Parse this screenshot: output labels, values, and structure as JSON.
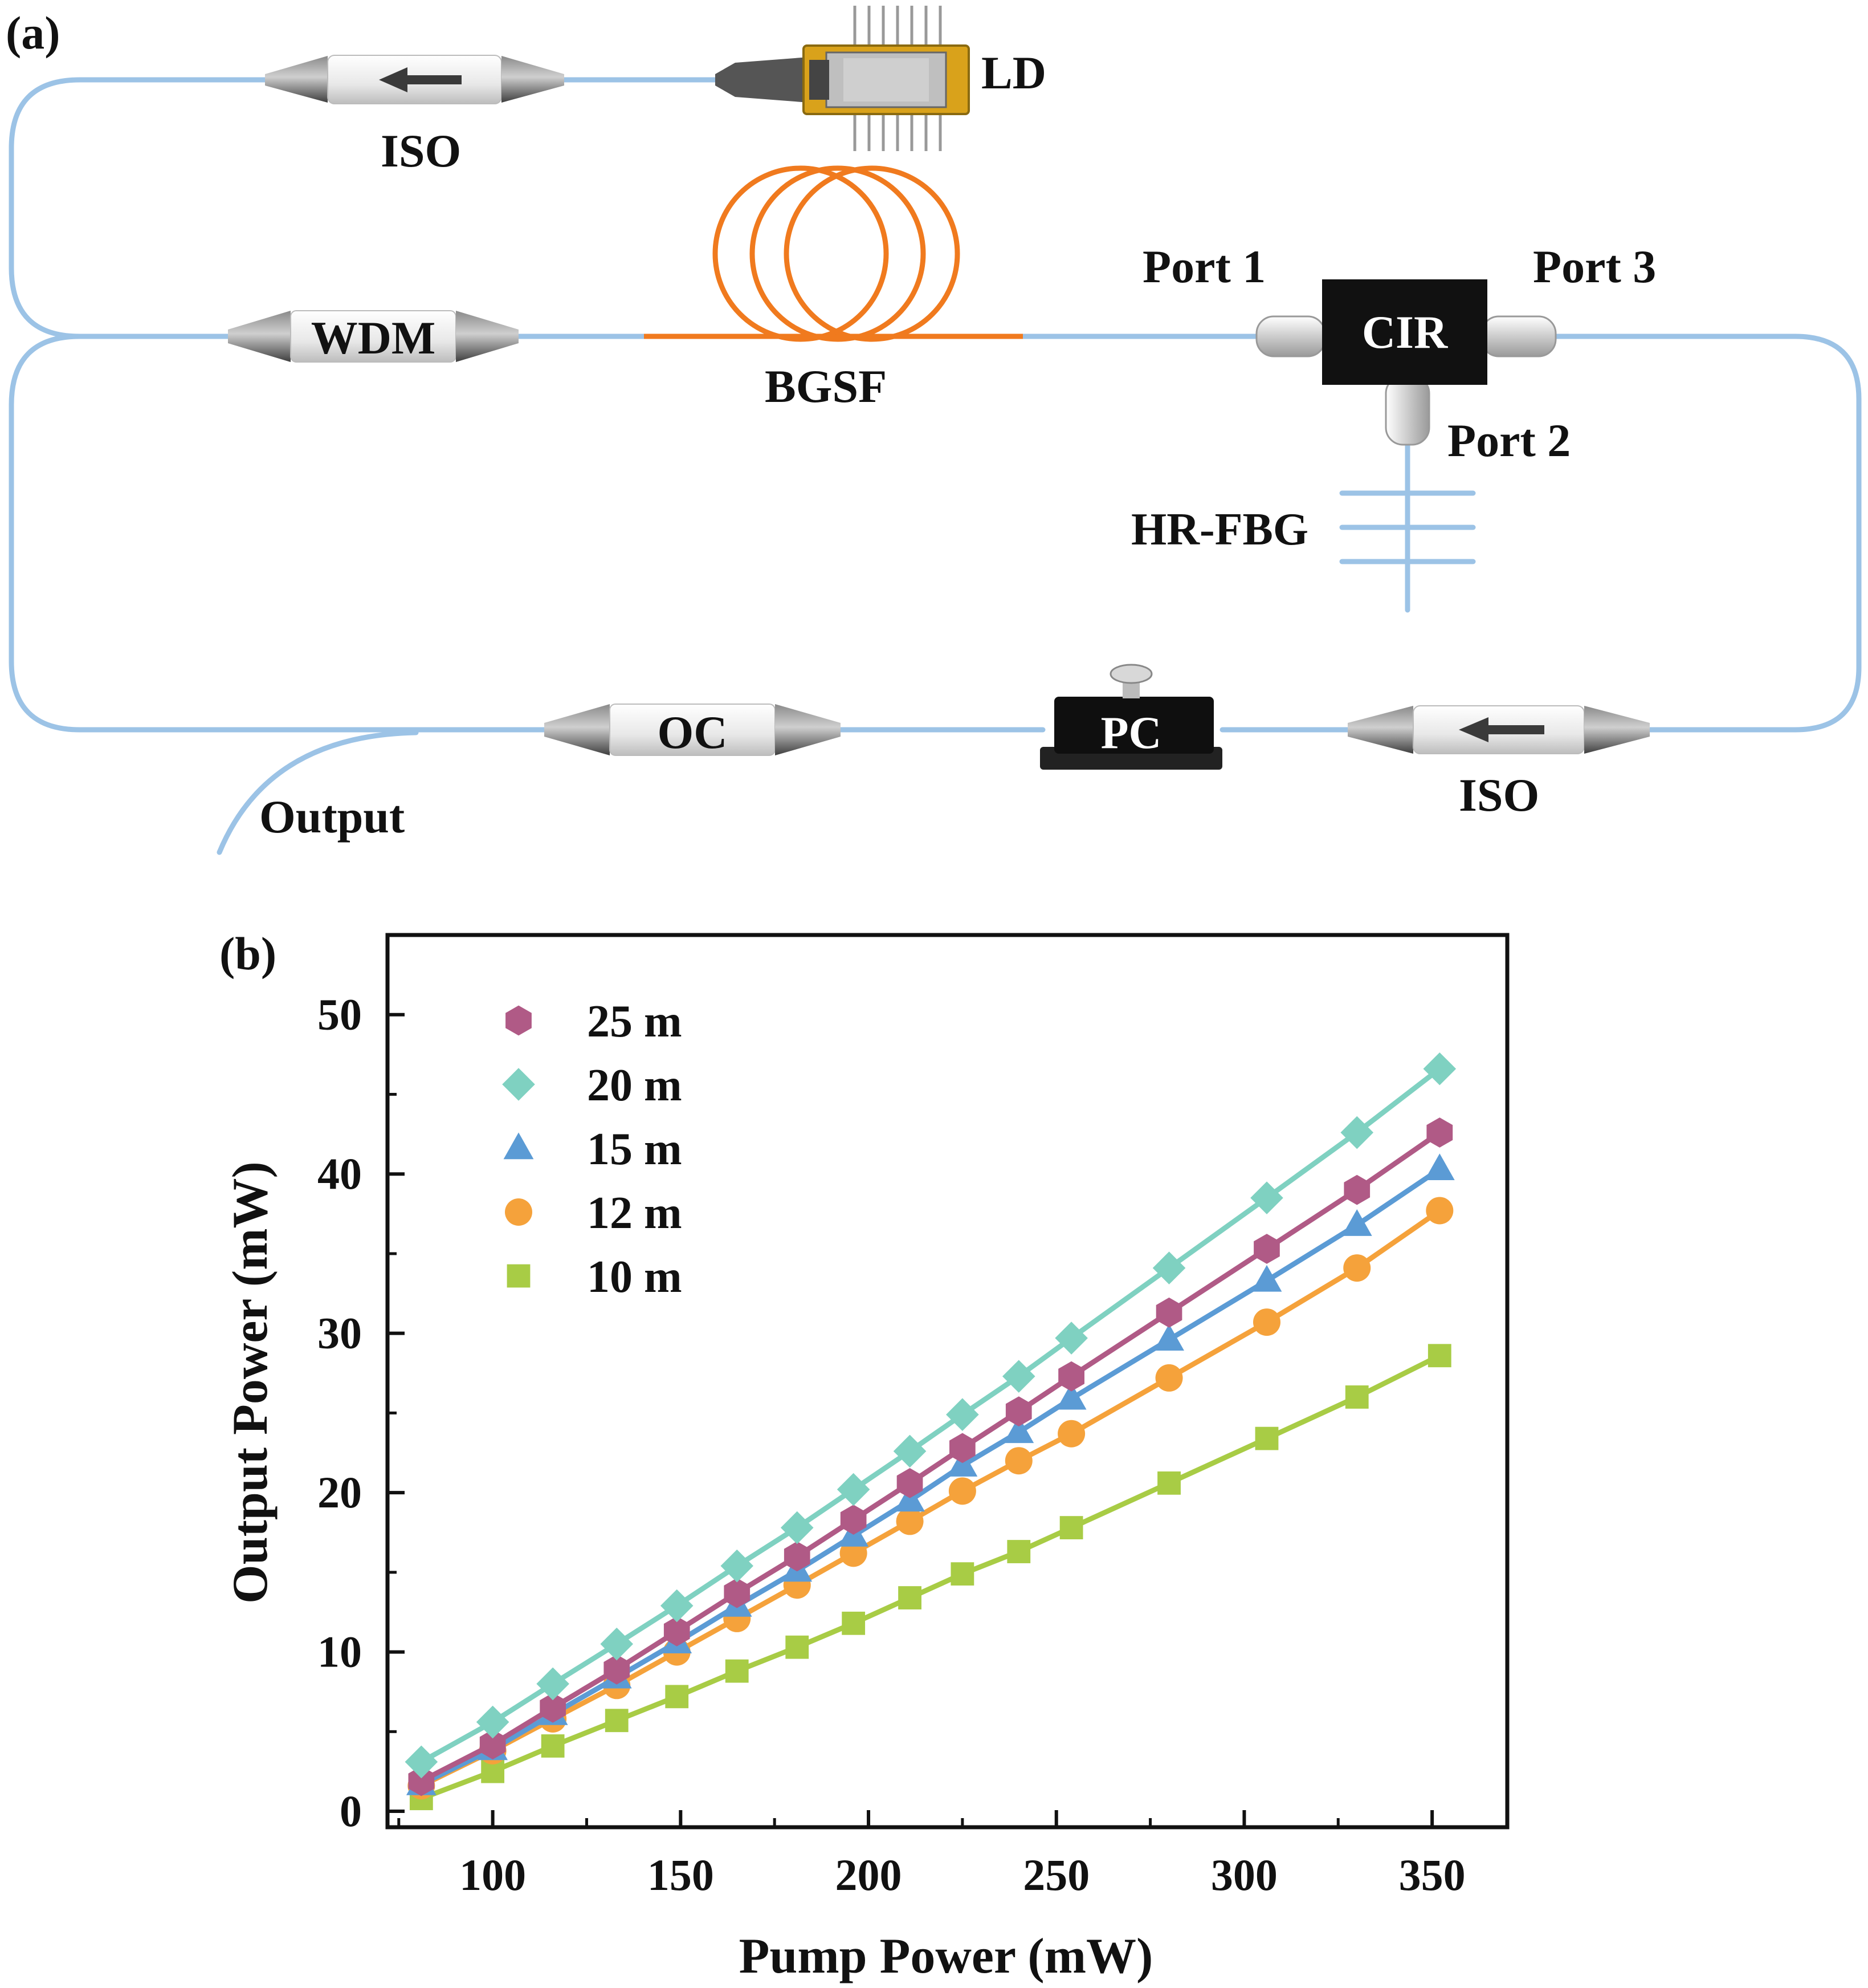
{
  "panel_a": {
    "panel_label": "(a)",
    "labels": {
      "ld": "LD",
      "iso_top": "ISO",
      "wdm": "WDM",
      "bgsf": "BGSF",
      "port1": "Port 1",
      "port3": "Port 3",
      "cir": "CIR",
      "port2": "Port 2",
      "hr_fbg": "HR-FBG",
      "oc": "OC",
      "pc": "PC",
      "iso_bottom": "ISO",
      "output": "Output"
    },
    "colors": {
      "fiber": "#9cc3e6",
      "gain_fiber": "#f07a1e",
      "device_body": "#e6e6e6",
      "device_cone": "#555555",
      "circulator": "#111111",
      "laser_gold": "#d9a21b"
    }
  },
  "panel_b": {
    "panel_label": "(b)",
    "chart_data": {
      "type": "line",
      "xlabel": "Pump Power (mW)",
      "ylabel": "Output Power (mW)",
      "xlim": [
        72,
        370
      ],
      "ylim": [
        -1,
        55
      ],
      "xticks": [
        100,
        150,
        200,
        250,
        300,
        350
      ],
      "yticks": [
        0,
        10,
        20,
        30,
        40,
        50
      ],
      "legend_position": "top-left",
      "x": [
        81,
        100,
        116,
        133,
        149,
        165,
        181,
        196,
        211,
        225,
        240,
        254,
        280,
        306,
        330,
        352
      ],
      "series": [
        {
          "name": "25 m",
          "marker": "hexagon",
          "color": "#b05a86",
          "values": [
            1.9,
            4.2,
            6.5,
            8.9,
            11.3,
            13.7,
            16.0,
            18.3,
            20.6,
            22.8,
            25.1,
            27.3,
            31.3,
            35.3,
            39.0,
            42.6
          ]
        },
        {
          "name": "20 m",
          "marker": "diamond",
          "color": "#7fd1c1",
          "values": [
            3.1,
            5.6,
            8.0,
            10.5,
            12.9,
            15.4,
            17.8,
            20.2,
            22.6,
            24.9,
            27.3,
            29.7,
            34.1,
            38.5,
            42.6,
            46.6
          ]
        },
        {
          "name": "15 m",
          "marker": "triangle",
          "color": "#5b9bd5",
          "values": [
            1.7,
            3.9,
            6.1,
            8.4,
            10.6,
            12.9,
            15.1,
            17.3,
            19.5,
            21.7,
            23.8,
            25.9,
            29.6,
            33.3,
            36.8,
            40.3
          ]
        },
        {
          "name": "12 m",
          "marker": "circle",
          "color": "#f5a23b",
          "values": [
            1.6,
            3.8,
            5.8,
            7.9,
            10.0,
            12.1,
            14.2,
            16.2,
            18.2,
            20.1,
            22.0,
            23.7,
            27.2,
            30.7,
            34.1,
            37.7
          ]
        },
        {
          "name": "10 m",
          "marker": "square",
          "color": "#a8cc45",
          "values": [
            0.8,
            2.5,
            4.1,
            5.7,
            7.2,
            8.8,
            10.3,
            11.8,
            13.4,
            14.9,
            16.3,
            17.8,
            20.6,
            23.4,
            26.0,
            28.6
          ]
        }
      ]
    }
  }
}
